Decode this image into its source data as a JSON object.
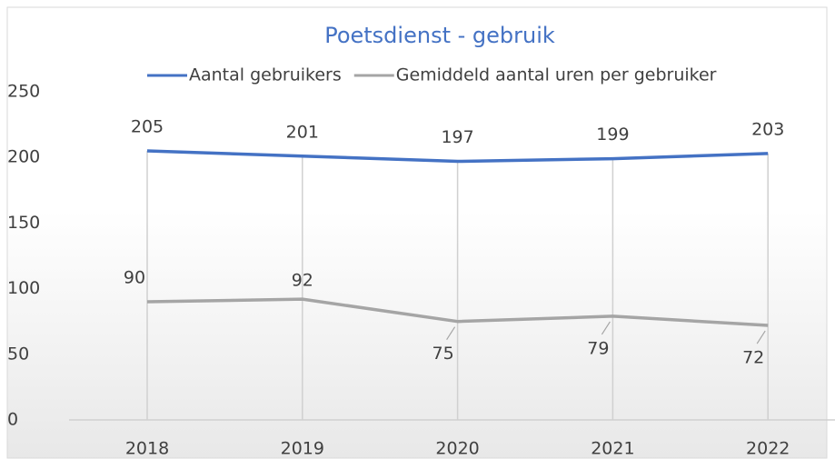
{
  "chart_data": {
    "type": "line",
    "title": "Poetsdienst  - gebruik",
    "categories": [
      "2018",
      "2019",
      "2020",
      "2021",
      "2022"
    ],
    "series": [
      {
        "name": "Aantal gebruikers",
        "color": "#4472c4",
        "values": [
          205,
          201,
          197,
          199,
          203
        ]
      },
      {
        "name": "Gemiddeld aantal uren per gebruiker",
        "color": "#a5a5a5",
        "values": [
          90,
          92,
          75,
          79,
          72
        ]
      }
    ],
    "ylim": [
      0,
      250
    ],
    "yticks": [
      0,
      50,
      100,
      150,
      200,
      250
    ],
    "grid": false,
    "legend": "top"
  }
}
